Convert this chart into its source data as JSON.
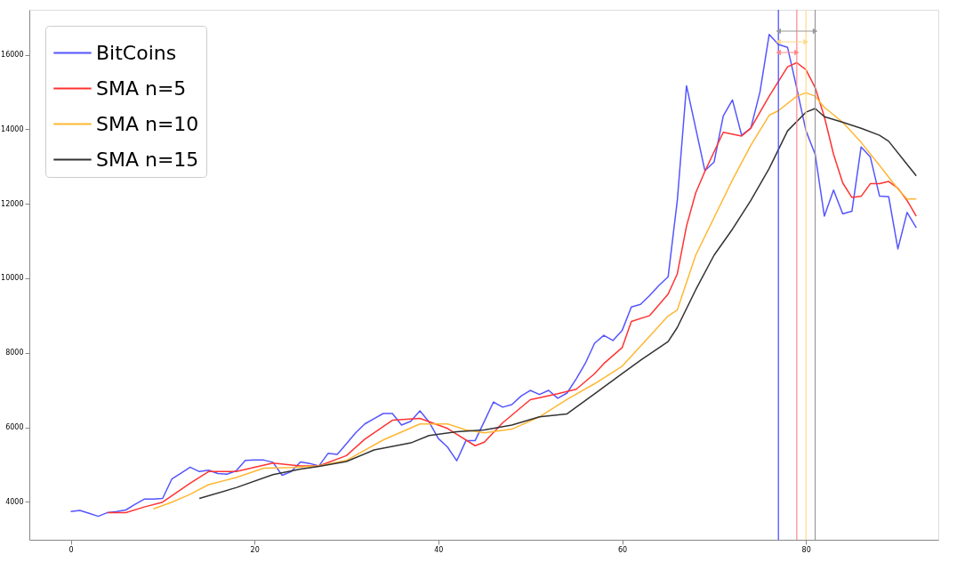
{
  "chart_data": {
    "type": "line",
    "x": [
      0,
      1,
      2,
      3,
      4,
      5,
      6,
      7,
      8,
      9,
      10,
      11,
      12,
      13,
      14,
      15,
      16,
      17,
      18,
      19,
      20,
      21,
      22,
      23,
      24,
      25,
      26,
      27,
      28,
      29,
      30,
      31,
      32,
      33,
      34,
      35,
      36,
      37,
      38,
      39,
      40,
      41,
      42,
      43,
      44,
      45,
      46,
      47,
      48,
      49,
      50,
      51,
      52,
      53,
      54,
      55,
      56,
      57,
      58,
      59,
      60,
      61,
      62,
      63,
      64,
      65,
      66,
      67,
      68,
      69,
      70,
      71,
      72,
      73,
      74,
      75,
      76,
      77,
      78,
      79,
      80,
      81,
      82,
      83,
      84,
      85,
      86,
      87,
      88,
      89,
      90,
      91,
      92
    ],
    "series": [
      {
        "name": "BitCoins",
        "color": "#5555ff",
        "values": [
          3740,
          3770,
          3690,
          3610,
          3710,
          3740,
          3780,
          3930,
          4070,
          4070,
          4090,
          4610,
          4770,
          4930,
          4810,
          4850,
          4760,
          4740,
          4830,
          5110,
          5120,
          5120,
          5060,
          4710,
          4810,
          5070,
          5030,
          4960,
          5300,
          5270,
          5560,
          5850,
          6090,
          6230,
          6370,
          6370,
          6060,
          6160,
          6440,
          6140,
          5700,
          5470,
          5100,
          5640,
          5640,
          6160,
          6680,
          6540,
          6610,
          6840,
          6990,
          6880,
          6990,
          6780,
          6920,
          7300,
          7720,
          8256,
          8470,
          8330,
          8600,
          9230,
          9300,
          9540,
          9810,
          10040,
          12090,
          15170,
          14030,
          12890,
          13120,
          14360,
          14790,
          13840,
          14030,
          15010,
          16550,
          16280,
          16200,
          15100,
          13960,
          13330,
          11670,
          12370,
          11730,
          11800,
          13530,
          13260,
          12210,
          12190,
          10790,
          11770,
          11360
        ]
      },
      {
        "name": "SMA n=5",
        "color": "#ff3333",
        "x": [
          4,
          6,
          8,
          10,
          13,
          15,
          18,
          22,
          25,
          27,
          30,
          32,
          35,
          38,
          41,
          44,
          45,
          47,
          50,
          53,
          55,
          57,
          58,
          60,
          61,
          63,
          65,
          66,
          67,
          68,
          69,
          71,
          73,
          74,
          76,
          78,
          79,
          80,
          81,
          82,
          83,
          84,
          85,
          86,
          87,
          88,
          89,
          90,
          91,
          92
        ],
        "values": [
          3710,
          3710,
          3860,
          3990,
          4500,
          4810,
          4810,
          5040,
          4960,
          4960,
          5240,
          5680,
          6190,
          6240,
          5970,
          5505,
          5600,
          6120,
          6740,
          6900,
          7020,
          7440,
          7710,
          8140,
          8840,
          9000,
          9575,
          10120,
          11400,
          12290,
          12870,
          13920,
          13820,
          14030,
          14890,
          15680,
          15790,
          15600,
          15120,
          14340,
          13330,
          12560,
          12170,
          12200,
          12540,
          12540,
          12600,
          12420,
          12090,
          11670
        ]
      },
      {
        "name": "SMA n=10",
        "color": "#ffb733",
        "x": [
          9,
          11,
          13,
          15,
          18,
          21,
          24,
          27,
          30,
          34,
          38,
          41,
          43,
          45,
          48,
          51,
          54,
          57,
          60,
          63,
          65,
          66,
          68,
          70,
          72,
          74,
          76,
          77,
          79,
          80,
          81,
          82,
          84,
          86,
          88,
          90,
          91,
          92
        ],
        "values": [
          3810,
          3990,
          4200,
          4460,
          4650,
          4900,
          4920,
          4960,
          5110,
          5660,
          6090,
          6090,
          5930,
          5850,
          5950,
          6280,
          6750,
          7170,
          7640,
          8450,
          8990,
          9150,
          10620,
          11630,
          12640,
          13570,
          14380,
          14500,
          14890,
          14980,
          14890,
          14590,
          14190,
          13650,
          13030,
          12400,
          12130,
          12130
        ]
      },
      {
        "name": "SMA n=15",
        "color": "#333333",
        "x": [
          14,
          18,
          22,
          25,
          27,
          30,
          33,
          37,
          39,
          42,
          45,
          48,
          51,
          54,
          57,
          60,
          62,
          65,
          66,
          68,
          70,
          72,
          74,
          76,
          78,
          80,
          81,
          82,
          84,
          86,
          88,
          89,
          92
        ],
        "values": [
          4090,
          4380,
          4730,
          4880,
          4950,
          5080,
          5390,
          5580,
          5780,
          5880,
          5930,
          6060,
          6280,
          6360,
          6900,
          7440,
          7800,
          8300,
          8680,
          9690,
          10620,
          11320,
          12090,
          12950,
          13960,
          14460,
          14560,
          14340,
          14190,
          14030,
          13840,
          13680,
          12750
        ]
      }
    ],
    "xlim": [
      -4.5,
      94.4
    ],
    "ylim": [
      2980,
      17210
    ],
    "xticks": [
      0,
      20,
      40,
      60,
      80
    ],
    "yticks": [
      4000,
      6000,
      8000,
      10000,
      12000,
      14000,
      16000
    ],
    "ref_lines": [
      {
        "axis": "x",
        "value": 77,
        "color": "#4444ff"
      },
      {
        "axis": "x",
        "value": 79,
        "color": "#ff8888"
      },
      {
        "axis": "x",
        "value": 80,
        "color": "#ffd98a"
      },
      {
        "axis": "x",
        "value": 81,
        "color": "#999999"
      }
    ],
    "grid": false,
    "legend": "top left",
    "marker": "none",
    "line_style": "solid"
  }
}
